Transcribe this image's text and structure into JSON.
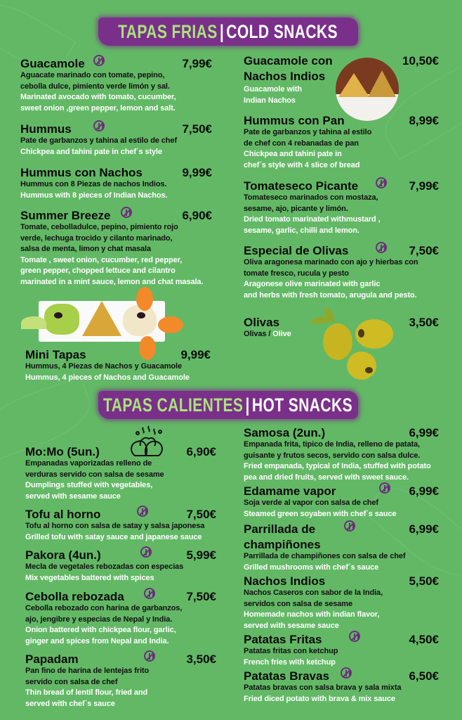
{
  "colors": {
    "background": "#63b866",
    "banner": "#7a2f8a",
    "accent_green": "#a9e27c",
    "name_text": "#0a0a0a",
    "english_text": "#ffffff",
    "gluten_free_icon": "#6b2f7a"
  },
  "sections": [
    {
      "title_es": "TAPAS FRIAS",
      "title_en": "COLD SNACKS",
      "separator": "|",
      "items": [
        {
          "name": "Guacamole",
          "price": "7,99€",
          "gluten_free": true,
          "es": "Aguacate marinado con tomate, pepino,\ncebolla dulce, pimiento verde limón y sal.",
          "en": "Marinated avocado with tomato, cucumber,\nsweet onion ,green pepper, lemon and salt."
        },
        {
          "name": "Hummus",
          "price": "7,50€",
          "gluten_free": true,
          "es": "Pate de garbanzos y tahina al estilo de chef",
          "en": "Chickpea and tahini pate in chef´s style"
        },
        {
          "name": "Hummus con Nachos",
          "price": "9,99€",
          "gluten_free": false,
          "es": "Hummus con 8 Piezas de nachos Indios.",
          "en": "Hummus with 8 pieces of Indian Nachos."
        },
        {
          "name": "Summer Breeze",
          "price": "6,90€",
          "gluten_free": true,
          "es": "Tomate, cebolladulce, pepino, pimiento rojo\nverde, lechuga trocido y cilanto marinado,\nsalsa de menta, limon y chat masala",
          "en": "Tomate , sweet onion, cucumber, red pepper,\ngreen pepper, chopped lettuce and cilantro\nmarinated in a mint sauce, lemon and chat masala."
        },
        {
          "name": "Mini   Tapas",
          "price": "9,99€",
          "gluten_free": false,
          "es": "Hummus, 4 Piezas de Nachos y Guacamole",
          "en": "Hummus, 4 pieces of Nachos and Guacamole"
        },
        {
          "name": "Guacamole con\nNachos Indios",
          "price": "10,50€",
          "gluten_free": false,
          "es": "",
          "en": "Guacamole with\nIndian Nachos"
        },
        {
          "name": "Hummus con Pan",
          "price": "8,99€",
          "gluten_free": false,
          "es": "Pate de garbanzos y tahina al estilo\nde chef con 4 rebanadas de pan",
          "en": "Chickpea and tahini pate in\nchef´s style with 4 slice of bread"
        },
        {
          "name": "Tomateseco Picante",
          "price": "7,99€",
          "gluten_free": true,
          "es": "Tomateseco marinados con mostaza,\nsesame, ajo, picante y limón.",
          "en": "Dried tomato marinated withmustard ,\nsesame, garlic, chilli and lemon."
        },
        {
          "name": "Especial de Olivas",
          "price": "7,50€",
          "gluten_free": true,
          "es": "Oliva aragonesa marinado con ajo y hierbas con\ntomate fresco, rucula y pesto",
          "en": "Aragonese olive marinated with garlic\nand herbs with fresh tomato, arugula and pesto."
        },
        {
          "name": "Olivas",
          "price": "3,50€",
          "gluten_free": false,
          "es_inline": "Olivas",
          "slash": " / ",
          "en_inline": "Olive"
        }
      ]
    },
    {
      "title_es": "TAPAS CALIENTES",
      "title_en": "HOT SNACKS",
      "separator": "|",
      "items": [
        {
          "name": "Mo:Mo (5un.)",
          "price": "6,90€",
          "gluten_free": false,
          "es": "Empanadas vaporizadas relleno de\nverduras servido con salsa de sesame",
          "en": "Dumplings stuffed with vegetables,\nserved with sesame sauce"
        },
        {
          "name": "Tofu al horno",
          "price": "7,50€",
          "gluten_free": true,
          "es": "Tofu al horno con salsa de satay y salsa japonesa",
          "en": "Grilled tofu with satay sauce and japanese sauce"
        },
        {
          "name": "Pakora (4un.)",
          "price": "5,99€",
          "gluten_free": true,
          "es": "Mecla de vegetales rebozadas con especias",
          "en": "Mix vegetables battered with spices"
        },
        {
          "name": "Cebolla rebozada",
          "price": "7,50€",
          "gluten_free": true,
          "es": "Cebolla rebozado con harina de garbanzos,\najo, jengibre y especias de Nepal y India.",
          "en": "Onion battered with chickpea flour, garlic,\nginger and spices from Nepal and India."
        },
        {
          "name": "Papadam",
          "price": "3,50€",
          "gluten_free": true,
          "es": "Pan fino de harina de lentejas frito\nservido con salsa de chef",
          "en": "Thin bread of lentil flour, fried and\nserved with chef´s sauce"
        },
        {
          "name": "Samosa (2un.)",
          "price": "6,99€",
          "gluten_free": false,
          "es": "Empanada frita, tipico de India, relleno de patata,\nguisante y frutos secos, servido con salsa dulce.",
          "en": "Fried empanada, typical of India, stuffed with potato\npea and dried fruits, served with sweet sauce."
        },
        {
          "name": "Edamame vapor",
          "price": "6,99€",
          "gluten_free": true,
          "es": "Soja verde al vapor con salsa de chef",
          "en": "Steamed green soyaben with chef´s sauce"
        },
        {
          "name": "Parrillada de\nchampiñones",
          "price": "6,99€",
          "gluten_free": true,
          "es": "Parrillada de champiñones con salsa de chef",
          "en": "Grilled mushrooms with chef´s sauce"
        },
        {
          "name": "Nachos Indios",
          "price": "5,50€",
          "gluten_free": false,
          "es": "Nachos Caseros con sabor de la India,\nservidos con salsa de sesame",
          "en": "Homemade nachos with indian flavor,\nserved with sesame sauce"
        },
        {
          "name": "Patatas Fritas",
          "price": "4,50€",
          "gluten_free": true,
          "es": "Patatas fritas con ketchup",
          "en": "French fries with ketchup"
        },
        {
          "name": "Patatas Bravas",
          "price": "6,50€",
          "gluten_free": true,
          "es": "Patatas bravas con salsa brava y sala mixta",
          "en": "Fried diced potato with brava & mix sauce"
        }
      ]
    }
  ]
}
